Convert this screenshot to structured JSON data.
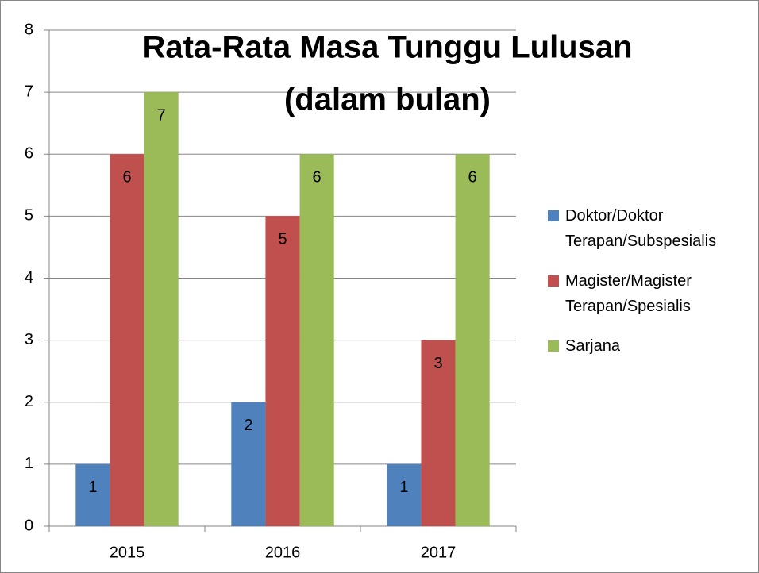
{
  "chart_data": {
    "type": "bar",
    "title": "Rata-Rata Masa Tunggu Lulusan",
    "subtitle": "(dalam bulan)",
    "categories": [
      "2015",
      "2016",
      "2017"
    ],
    "series": [
      {
        "name": "Doktor/Doktor Terapan/Subspesialis",
        "color": "#4f81bd",
        "values": [
          1,
          2,
          1
        ]
      },
      {
        "name": "Magister/Magister Terapan/Spesialis",
        "color": "#c0504d",
        "values": [
          6,
          5,
          3
        ]
      },
      {
        "name": "Sarjana",
        "color": "#9bbb59",
        "values": [
          7,
          6,
          6
        ]
      }
    ],
    "ylim": [
      0,
      8
    ],
    "yticks": [
      0,
      1,
      2,
      3,
      4,
      5,
      6,
      7,
      8
    ],
    "grid": true,
    "legend": "right"
  }
}
